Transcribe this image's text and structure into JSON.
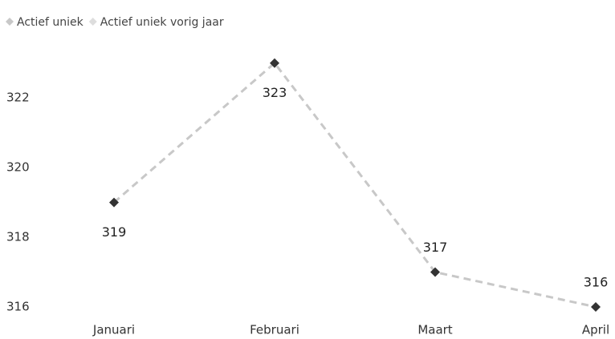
{
  "chart_data": {
    "type": "line",
    "categories": [
      "Januari",
      "Februari",
      "Maart",
      "April"
    ],
    "series": [
      {
        "name": "Actief uniek",
        "color": "#c8c8c8",
        "marker_color": "#333333",
        "values": [
          319,
          323,
          317,
          316
        ]
      },
      {
        "name": "Actief uniek vorig jaar",
        "color": "#dddddd",
        "values": [
          null,
          null,
          null,
          null
        ]
      }
    ],
    "ylim": [
      316,
      323.5
    ],
    "yticks": [
      316,
      318,
      320,
      322
    ],
    "grid": false,
    "legend": "top-left",
    "data_labels": true
  }
}
